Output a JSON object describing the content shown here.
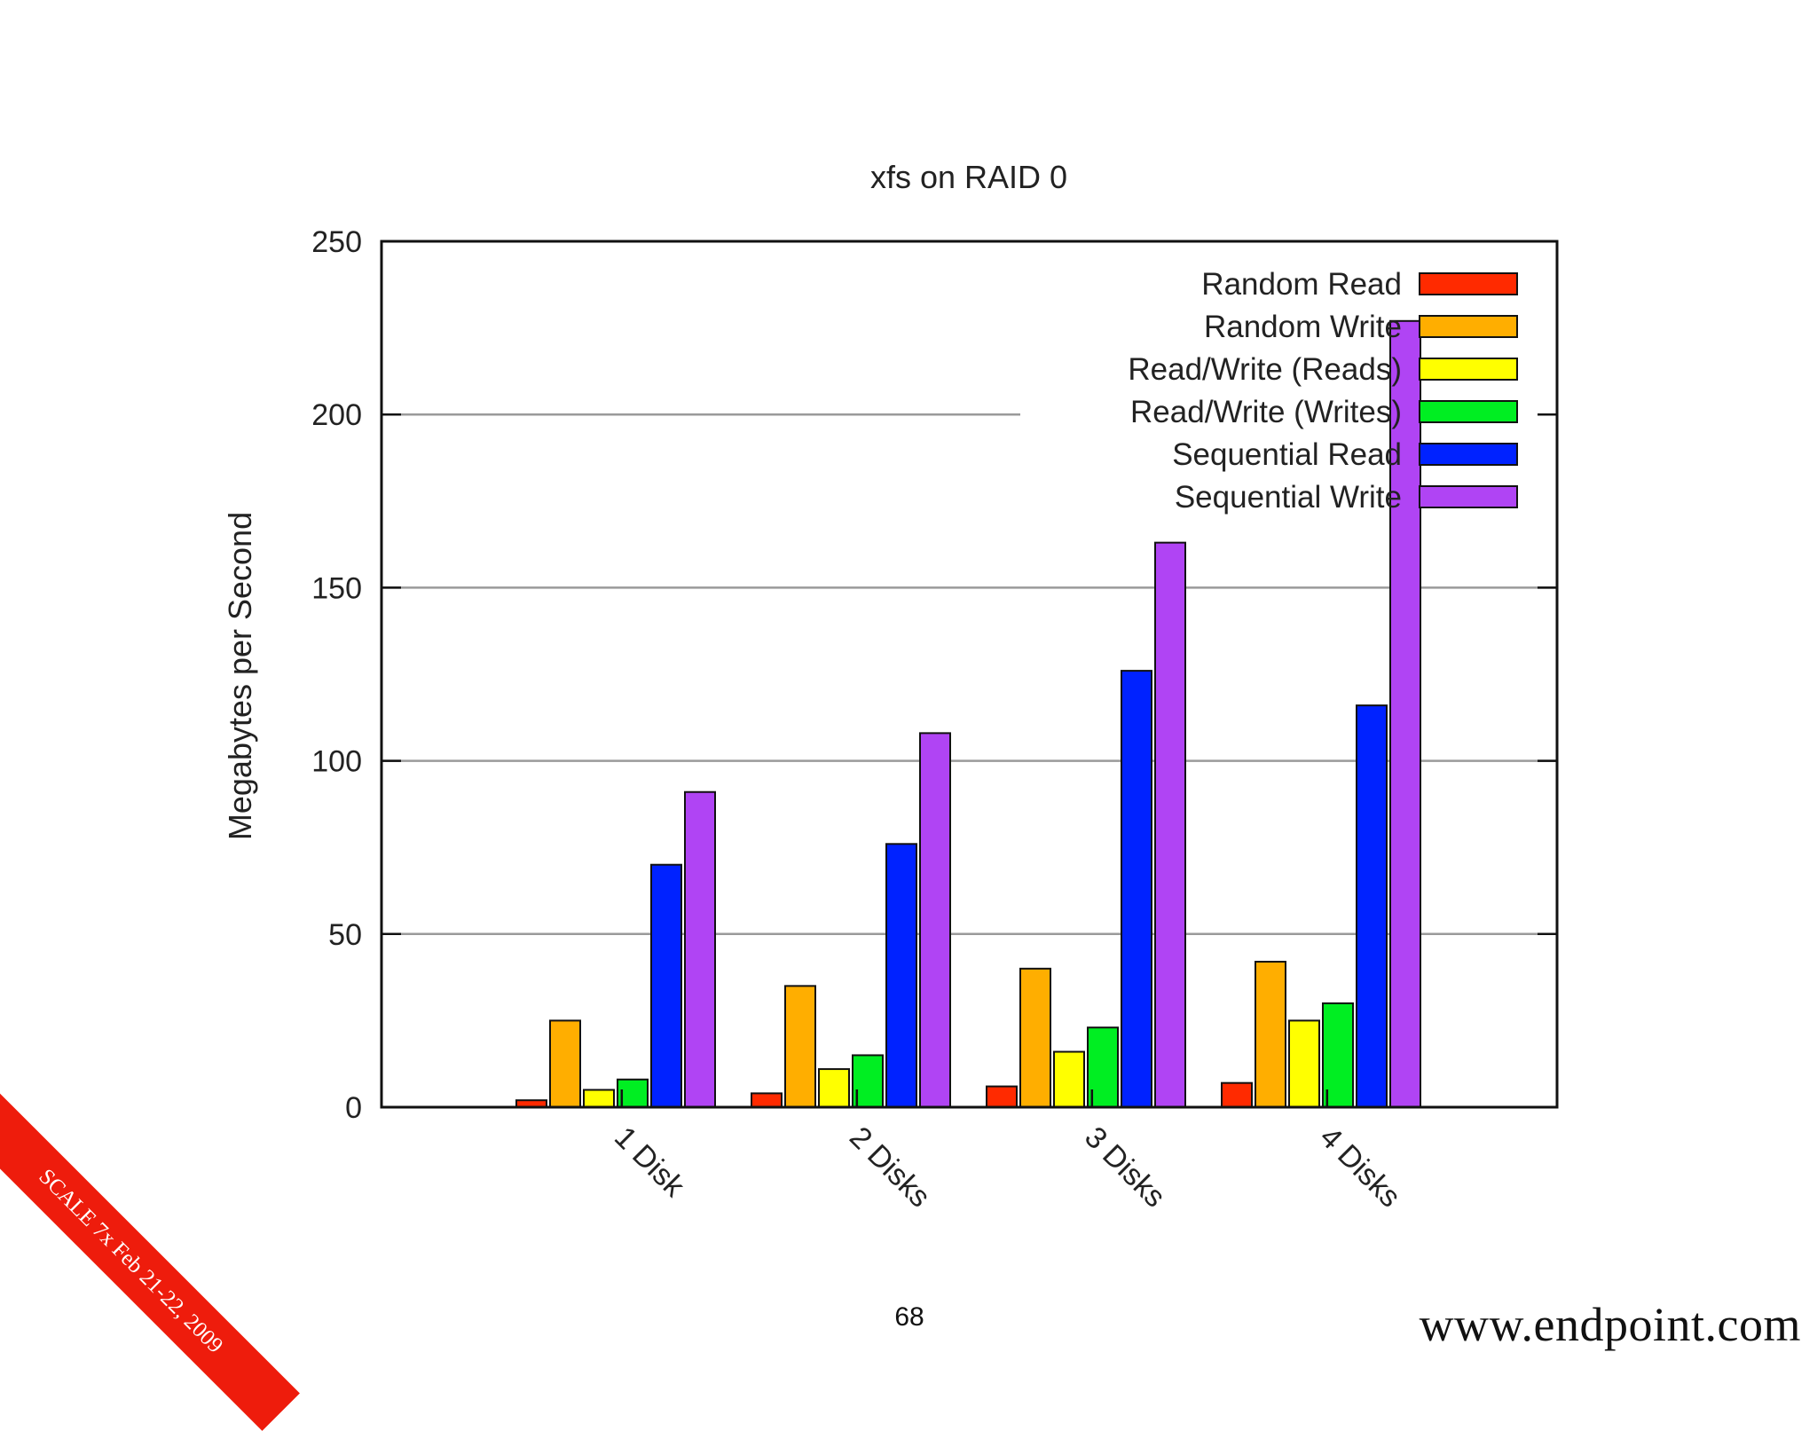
{
  "slide": {
    "banner_text": "SCALE 7x Feb 21-22, 2009",
    "page_number": "68",
    "site_url": "www.endpoint.com"
  },
  "chart_data": {
    "type": "bar",
    "title": "xfs on RAID 0",
    "xlabel": "",
    "ylabel": "Megabytes per Second",
    "ylim": [
      0,
      250
    ],
    "yticks": [
      0,
      50,
      100,
      150,
      200,
      250
    ],
    "grid": true,
    "legend_position": "top-right",
    "categories": [
      "1 Disk",
      "2 Disks",
      "3 Disks",
      "4 Disks"
    ],
    "series": [
      {
        "name": "Random Read",
        "color": "#ff2a00",
        "values": [
          2,
          4,
          6,
          7
        ]
      },
      {
        "name": "Random Write",
        "color": "#ffae00",
        "values": [
          25,
          35,
          40,
          42
        ]
      },
      {
        "name": "Read/Write (Reads)",
        "color": "#ffff00",
        "values": [
          5,
          11,
          16,
          25
        ]
      },
      {
        "name": "Read/Write (Writes)",
        "color": "#00ee22",
        "values": [
          8,
          15,
          23,
          30
        ]
      },
      {
        "name": "Sequential Read",
        "color": "#0022ff",
        "values": [
          70,
          76,
          126,
          116
        ]
      },
      {
        "name": "Sequential Write",
        "color": "#b044f4",
        "values": [
          91,
          108,
          163,
          227
        ]
      }
    ]
  }
}
